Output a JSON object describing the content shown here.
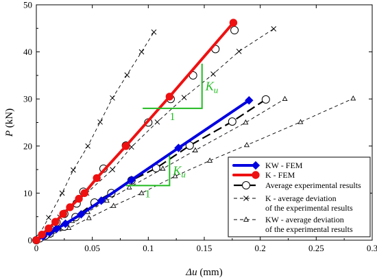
{
  "chart_data": {
    "type": "line",
    "title": "",
    "xlabel": {
      "prefix": "Δu",
      "unit": "(mm)"
    },
    "ylabel": {
      "symbol": "P",
      "unit": "(kN)"
    },
    "xlim": [
      0,
      0.3
    ],
    "ylim": [
      0,
      50
    ],
    "x_ticks": [
      {
        "value": 0,
        "label": "0"
      },
      {
        "value": 0.05,
        "label": "0.05"
      },
      {
        "value": 0.1,
        "label": "0.1"
      },
      {
        "value": 0.15,
        "label": "0.15"
      },
      {
        "value": 0.2,
        "label": "0.2"
      },
      {
        "value": 0.25,
        "label": "0.25"
      },
      {
        "value": 0.3,
        "label": "0.3"
      }
    ],
    "y_ticks": [
      {
        "value": 0,
        "label": "0"
      },
      {
        "value": 10,
        "label": "10"
      },
      {
        "value": 20,
        "label": "20"
      },
      {
        "value": 30,
        "label": "30"
      },
      {
        "value": 40,
        "label": "40"
      },
      {
        "value": 50,
        "label": "50"
      }
    ],
    "grid": false,
    "legend_position": "bottom-right",
    "legend": [
      {
        "lines": [
          "KW - FEM"
        ]
      },
      {
        "lines": [
          "K - FEM"
        ]
      },
      {
        "lines": [
          "Average experimental results"
        ]
      },
      {
        "lines": [
          "K - average deviation",
          "of the experimental results"
        ]
      },
      {
        "lines": [
          "KW - average deviation",
          "of the experimental results"
        ]
      }
    ],
    "annotations": [
      {
        "kind": "stiffness-triangle",
        "symbol": "K",
        "subscript": "u",
        "run_label": "1",
        "x1": 0.095,
        "x2": 0.148,
        "y1": 28.0,
        "y2": 37.5
      },
      {
        "kind": "stiffness-triangle",
        "symbol": "K",
        "subscript": "u",
        "run_label": "1",
        "x1": 0.08,
        "x2": 0.119,
        "y1": 11.6,
        "y2": 18.0
      }
    ],
    "series": [
      {
        "name": "KW - FEM",
        "color": "#0000e0",
        "style": "solid-thick",
        "marker": "diamond",
        "points": [
          [
            0,
            0
          ],
          [
            0.006,
            0.8
          ],
          [
            0.012,
            1.6
          ],
          [
            0.018,
            2.4
          ],
          [
            0.026,
            3.5
          ],
          [
            0.04,
            5.5
          ],
          [
            0.058,
            8.4
          ],
          [
            0.085,
            12.8
          ],
          [
            0.127,
            19.6
          ],
          [
            0.19,
            29.7
          ]
        ]
      },
      {
        "name": "K - FEM",
        "color": "#ee1111",
        "style": "solid-thick",
        "marker": "circle-filled",
        "points": [
          [
            0,
            0
          ],
          [
            0.005,
            1.2
          ],
          [
            0.011,
            2.5
          ],
          [
            0.017,
            3.9
          ],
          [
            0.024,
            5.6
          ],
          [
            0.03,
            7.0
          ],
          [
            0.038,
            8.8
          ],
          [
            0.043,
            10.0
          ],
          [
            0.054,
            13.2
          ],
          [
            0.08,
            20.0
          ],
          [
            0.119,
            30.5
          ],
          [
            0.176,
            46.2
          ]
        ]
      },
      {
        "name": "Average experimental results",
        "color": "#000000",
        "style": "long-dash",
        "marker": "circle-open",
        "points": [
          [
            0,
            0
          ],
          [
            0.012,
            1.4
          ],
          [
            0.025,
            2.9
          ],
          [
            0.035,
            4.9
          ],
          [
            0.052,
            8.0
          ],
          [
            0.067,
            10.0
          ],
          [
            0.085,
            12.7
          ],
          [
            0.107,
            15.3
          ],
          [
            0.137,
            20.1
          ],
          [
            0.175,
            25.2
          ],
          [
            0.205,
            29.9
          ]
        ],
        "overlay_markers": [
          [
            0.003,
            0.4
          ],
          [
            0.008,
            1.0
          ],
          [
            0.013,
            2.2
          ],
          [
            0.018,
            3.8
          ],
          [
            0.025,
            5.6
          ],
          [
            0.036,
            7.8
          ],
          [
            0.042,
            10.3
          ],
          [
            0.06,
            15.2
          ],
          [
            0.08,
            20.1
          ],
          [
            0.1,
            25.0
          ],
          [
            0.12,
            30.0
          ],
          [
            0.14,
            35.0
          ],
          [
            0.16,
            40.6
          ],
          [
            0.177,
            44.6
          ]
        ]
      },
      {
        "name": "K - average deviation of the experimental results",
        "color": "#000000",
        "style": "thin-dash",
        "marker": "x",
        "points": [
          [
            0,
            0
          ],
          [
            0.011,
            4.8
          ],
          [
            0.023,
            10.0
          ],
          [
            0.033,
            14.9
          ],
          [
            0.046,
            20.0
          ],
          [
            0.057,
            25.1
          ],
          [
            0.068,
            30.2
          ],
          [
            0.081,
            35.1
          ],
          [
            0.094,
            40.0
          ],
          [
            0.105,
            44.2
          ]
        ],
        "lower_points": [
          [
            0,
            0
          ],
          [
            0.021,
            4.9
          ],
          [
            0.045,
            10.0
          ],
          [
            0.068,
            15.0
          ],
          [
            0.085,
            19.8
          ],
          [
            0.108,
            25.1
          ],
          [
            0.132,
            30.3
          ],
          [
            0.158,
            35.3
          ],
          [
            0.181,
            40.1
          ],
          [
            0.212,
            44.9
          ]
        ]
      },
      {
        "name": "KW - average deviation of the experimental results",
        "color": "#000000",
        "style": "thin-dash",
        "marker": "triangle",
        "points": [
          [
            0,
            0
          ],
          [
            0.009,
            1.1
          ],
          [
            0.02,
            2.5
          ],
          [
            0.032,
            4.1
          ],
          [
            0.046,
            6.0
          ],
          [
            0.063,
            8.4
          ],
          [
            0.083,
            11.2
          ],
          [
            0.113,
            15.2
          ],
          [
            0.142,
            19.1
          ],
          [
            0.187,
            25.0
          ],
          [
            0.222,
            30.0
          ]
        ],
        "lower_points": [
          [
            0,
            0
          ],
          [
            0.013,
            1.2
          ],
          [
            0.029,
            2.6
          ],
          [
            0.047,
            4.7
          ],
          [
            0.069,
            7.3
          ],
          [
            0.094,
            10.0
          ],
          [
            0.124,
            13.6
          ],
          [
            0.155,
            16.9
          ],
          [
            0.188,
            20.2
          ],
          [
            0.236,
            25.1
          ],
          [
            0.283,
            30.1
          ]
        ]
      }
    ]
  }
}
